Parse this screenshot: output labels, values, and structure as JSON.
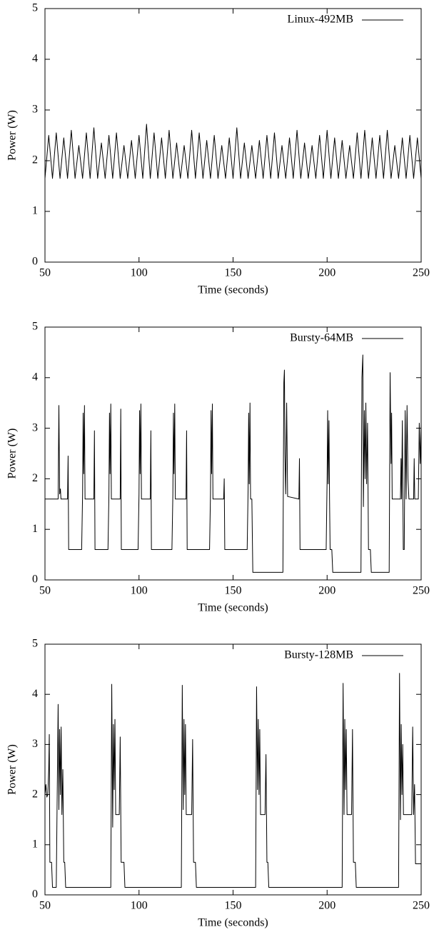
{
  "chart_data": [
    {
      "type": "line",
      "xlabel": "Time (seconds)",
      "ylabel": "Power (W)",
      "xlim": [
        50,
        250
      ],
      "ylim": [
        0,
        5
      ],
      "xticks": [
        50,
        100,
        150,
        200,
        250
      ],
      "yticks": [
        0,
        1,
        2,
        3,
        4,
        5
      ],
      "legend": "upper right",
      "x": [
        50,
        52,
        54,
        56,
        58,
        60,
        62,
        64,
        66,
        68,
        70,
        72,
        74,
        76,
        78,
        80,
        82,
        84,
        86,
        88,
        90,
        92,
        94,
        96,
        98,
        100,
        102,
        104,
        106,
        108,
        110,
        112,
        114,
        116,
        118,
        120,
        122,
        124,
        126,
        128,
        130,
        132,
        134,
        136,
        138,
        140,
        142,
        144,
        146,
        148,
        150,
        152,
        154,
        156,
        158,
        160,
        162,
        164,
        166,
        168,
        170,
        172,
        174,
        176,
        178,
        180,
        182,
        184,
        186,
        188,
        190,
        192,
        194,
        196,
        198,
        200,
        202,
        204,
        206,
        208,
        210,
        212,
        214,
        216,
        218,
        220,
        222,
        224,
        226,
        228,
        230,
        232,
        234,
        236,
        238,
        240,
        242,
        244,
        246,
        248,
        250
      ],
      "series": [
        {
          "name": "Linux-492MB",
          "color": "#000000",
          "values": [
            1.65,
            2.5,
            1.65,
            2.55,
            1.65,
            2.45,
            1.65,
            2.6,
            1.65,
            2.3,
            1.65,
            2.55,
            1.65,
            2.65,
            1.65,
            2.35,
            1.65,
            2.5,
            1.65,
            2.55,
            1.65,
            2.3,
            1.65,
            2.4,
            1.65,
            2.5,
            1.65,
            2.72,
            1.65,
            2.55,
            1.65,
            2.45,
            1.65,
            2.6,
            1.65,
            2.35,
            1.65,
            2.3,
            1.65,
            2.6,
            1.65,
            2.55,
            1.65,
            2.4,
            1.65,
            2.5,
            1.65,
            2.3,
            1.65,
            2.45,
            1.65,
            2.65,
            1.65,
            2.35,
            1.65,
            2.3,
            1.65,
            2.4,
            1.65,
            2.5,
            1.65,
            2.55,
            1.65,
            2.3,
            1.65,
            2.45,
            1.65,
            2.6,
            1.65,
            2.35,
            1.65,
            2.3,
            1.65,
            2.5,
            1.65,
            2.6,
            1.65,
            2.45,
            1.65,
            2.4,
            1.65,
            2.3,
            1.65,
            2.55,
            1.65,
            2.6,
            1.65,
            2.45,
            1.65,
            2.5,
            1.65,
            2.6,
            1.65,
            2.3,
            1.65,
            2.45,
            1.65,
            2.5,
            1.65,
            2.45,
            1.65
          ]
        }
      ]
    },
    {
      "type": "line",
      "xlabel": "Time (seconds)",
      "ylabel": "Power (W)",
      "xlim": [
        50,
        250
      ],
      "ylim": [
        0,
        5
      ],
      "xticks": [
        50,
        100,
        150,
        200,
        250
      ],
      "yticks": [
        0,
        1,
        2,
        3,
        4,
        5
      ],
      "legend": "upper right",
      "x": [
        50,
        57,
        57.4,
        57.8,
        58.2,
        58.5,
        62,
        62.3,
        62.6,
        69.5,
        70,
        70.3,
        70.6,
        71,
        71.3,
        76,
        76.3,
        76.6,
        83.5,
        84,
        84.3,
        84.6,
        85,
        85.3,
        90,
        90.3,
        90.6,
        99.5,
        100,
        100.3,
        100.6,
        101,
        101.3,
        106,
        106.3,
        106.6,
        117.5,
        118,
        118.3,
        118.6,
        119,
        119.3,
        125,
        125.3,
        125.6,
        137.5,
        138,
        138.3,
        138.6,
        139,
        139.3,
        145,
        145.3,
        145.6,
        157.5,
        158,
        158.3,
        158.6,
        159,
        159.3,
        160,
        160.5,
        176.5,
        177,
        177.3,
        177.6,
        178,
        178.5,
        179,
        185,
        185.3,
        185.6,
        199.5,
        200,
        200.3,
        200.6,
        201,
        201.3,
        201.6,
        202.5,
        203,
        218,
        218.5,
        219,
        219.3,
        219.8,
        220.2,
        220.6,
        221,
        221.5,
        222,
        223,
        223.5,
        233,
        233.5,
        234,
        234.3,
        234.6,
        239,
        239.3,
        239.6,
        240,
        240.5,
        241,
        241.5,
        242,
        242.5,
        243,
        243.5,
        246,
        246.3,
        246.6,
        248.5,
        249,
        249.5,
        250
      ],
      "series": [
        {
          "name": "Bursty-64MB",
          "color": "#000000",
          "values": [
            1.6,
            1.6,
            3.45,
            1.7,
            1.8,
            1.6,
            1.6,
            2.45,
            0.6,
            0.6,
            1.7,
            3.3,
            2.1,
            3.45,
            1.6,
            1.6,
            2.95,
            0.6,
            0.6,
            1.7,
            3.3,
            2.1,
            3.48,
            1.6,
            1.6,
            3.38,
            0.6,
            0.6,
            1.7,
            3.35,
            2.1,
            3.48,
            1.6,
            1.6,
            2.95,
            0.6,
            0.6,
            1.7,
            3.3,
            2.1,
            3.48,
            1.6,
            1.6,
            2.95,
            0.6,
            0.6,
            1.7,
            3.35,
            2.1,
            3.48,
            1.6,
            1.6,
            2.0,
            0.6,
            0.6,
            1.8,
            3.3,
            1.9,
            3.5,
            1.6,
            1.6,
            0.15,
            0.15,
            3.9,
            4.15,
            2.5,
            1.7,
            3.5,
            1.65,
            1.6,
            2.4,
            0.6,
            0.6,
            2.0,
            3.35,
            1.9,
            3.15,
            1.6,
            0.6,
            0.6,
            0.15,
            0.15,
            4.0,
            4.45,
            1.45,
            3.35,
            2.0,
            3.5,
            1.9,
            3.1,
            0.6,
            0.6,
            0.15,
            0.15,
            4.1,
            2.3,
            3.3,
            1.6,
            1.6,
            2.4,
            1.6,
            3.15,
            0.6,
            0.6,
            3.35,
            1.6,
            3.45,
            2.0,
            1.6,
            1.6,
            2.4,
            1.6,
            1.6,
            3.1,
            2.3,
            3.1
          ]
        }
      ]
    },
    {
      "type": "line",
      "xlabel": "Time (seconds)",
      "ylabel": "Power (W)",
      "xlim": [
        50,
        250
      ],
      "ylim": [
        0,
        5
      ],
      "xticks": [
        50,
        100,
        150,
        200,
        250
      ],
      "yticks": [
        0,
        1,
        2,
        3,
        4,
        5
      ],
      "legend": "upper right",
      "x": [
        50,
        50.5,
        51,
        51.5,
        52,
        52.3,
        52.6,
        53.5,
        54,
        56,
        56.5,
        57,
        57.4,
        57.8,
        58.2,
        58.6,
        59,
        59.5,
        60,
        60.5,
        61,
        85,
        85.5,
        86,
        86.4,
        86.8,
        87.2,
        87.6,
        89.5,
        90,
        90.5,
        92,
        92.5,
        122.5,
        123,
        123.5,
        123.9,
        124.3,
        124.7,
        125.1,
        128,
        128.5,
        129,
        130,
        130.5,
        162,
        162.5,
        163,
        163.4,
        163.8,
        164.2,
        164.6,
        167,
        167.5,
        168,
        168.5,
        169,
        208,
        208.5,
        209,
        209.4,
        209.8,
        210.2,
        210.6,
        213,
        213.5,
        214,
        215,
        215.5,
        238,
        238.5,
        239,
        239.4,
        239.8,
        240.2,
        240.6,
        245,
        245.5,
        246,
        246.5,
        247,
        250
      ],
      "series": [
        {
          "name": "Bursty-128MB",
          "color": "#000000",
          "values": [
            2.0,
            2.2,
            1.95,
            2.0,
            2.5,
            3.2,
            0.65,
            0.65,
            0.15,
            0.15,
            2.0,
            3.8,
            1.7,
            3.3,
            2.0,
            3.35,
            1.6,
            2.5,
            0.65,
            0.65,
            0.15,
            0.15,
            4.2,
            1.35,
            3.4,
            2.1,
            3.5,
            1.6,
            1.6,
            3.15,
            0.65,
            0.65,
            0.15,
            0.15,
            4.18,
            1.7,
            3.5,
            2.0,
            3.4,
            1.6,
            1.6,
            3.1,
            0.65,
            0.65,
            0.15,
            0.15,
            4.15,
            2.1,
            3.5,
            2.0,
            3.3,
            1.6,
            1.6,
            2.8,
            0.65,
            0.65,
            0.15,
            0.15,
            4.22,
            1.6,
            3.5,
            2.1,
            3.3,
            1.6,
            1.6,
            3.3,
            0.65,
            0.65,
            0.15,
            0.15,
            4.42,
            1.5,
            3.4,
            2.0,
            3.0,
            1.6,
            1.6,
            3.35,
            1.6,
            2.2,
            0.62,
            0.62
          ]
        }
      ]
    }
  ]
}
